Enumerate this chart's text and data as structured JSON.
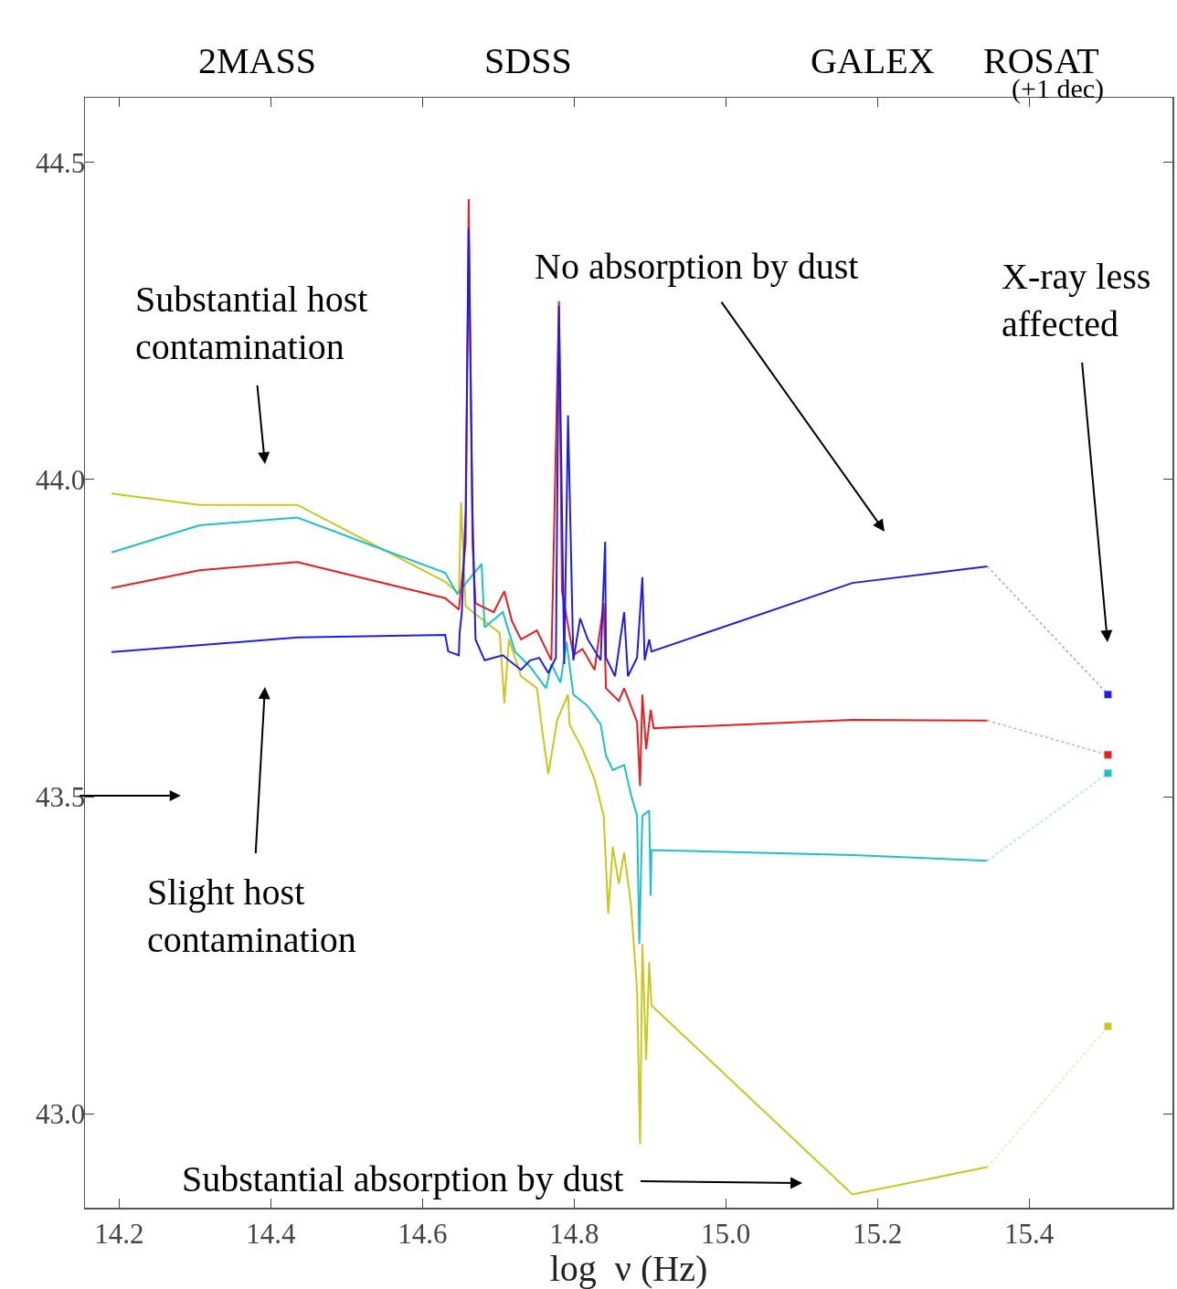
{
  "chart_data": {
    "type": "line",
    "xlabel": "log  ν (Hz)",
    "xlim": [
      14.155,
      15.589
    ],
    "ylim": [
      42.852,
      44.602
    ],
    "xticks": [
      {
        "value": 14.2,
        "label": "14.2"
      },
      {
        "value": 14.4,
        "label": "14.4"
      },
      {
        "value": 14.6,
        "label": "14.6"
      },
      {
        "value": 14.8,
        "label": "14.8"
      },
      {
        "value": 15.0,
        "label": "15.0"
      },
      {
        "value": 15.2,
        "label": "15.2"
      },
      {
        "value": 15.4,
        "label": "15.4"
      }
    ],
    "yticks": [
      {
        "value": 43.0,
        "label": "43.0"
      },
      {
        "value": 43.5,
        "label": "43.5"
      },
      {
        "value": 44.0,
        "label": "44.0"
      },
      {
        "value": 44.5,
        "label": "44.5"
      }
    ],
    "grid": false,
    "annotations": [
      "2MASS",
      "SDSS",
      "GALEX",
      "ROSAT",
      "(+1 dec)",
      "Substantial host\ncontamination",
      "Slight host\ncontamination",
      "No absorption by dust",
      "X-ray less\naffected",
      "Substantial absorption by dust"
    ],
    "series": [
      {
        "color": "#c8c81e",
        "x": [
          14.19,
          14.306,
          14.435,
          14.63,
          14.648,
          14.651,
          14.657,
          14.702,
          14.708,
          14.714,
          14.73,
          14.751,
          14.758,
          14.766,
          14.778,
          14.792,
          14.794,
          14.811,
          14.827,
          14.839,
          14.845,
          14.851,
          14.859,
          14.866,
          14.875,
          14.883,
          14.887,
          14.89,
          14.895,
          14.899,
          14.902,
          15.167,
          15.345
        ],
        "values": [
          43.978,
          43.96,
          43.96,
          43.839,
          43.82,
          43.964,
          43.8,
          43.758,
          43.647,
          43.748,
          43.69,
          43.671,
          43.604,
          43.536,
          43.622,
          43.661,
          43.614,
          43.575,
          43.527,
          43.47,
          43.316,
          43.421,
          43.363,
          43.412,
          43.33,
          43.196,
          42.952,
          43.268,
          43.085,
          43.239,
          43.171,
          42.873,
          42.916
        ]
      },
      {
        "color": "#1ec0c8",
        "x": [
          14.19,
          14.306,
          14.435,
          14.63,
          14.646,
          14.678,
          14.682,
          14.706,
          14.722,
          14.742,
          14.763,
          14.77,
          14.782,
          14.79,
          14.799,
          14.818,
          14.835,
          14.842,
          14.851,
          14.866,
          14.875,
          14.883,
          14.886,
          14.89,
          14.899,
          14.901,
          14.902,
          15.167,
          15.345
        ],
        "values": [
          43.885,
          43.928,
          43.94,
          43.853,
          43.82,
          43.867,
          43.767,
          43.791,
          43.729,
          43.705,
          43.671,
          43.709,
          43.68,
          43.744,
          43.661,
          43.643,
          43.614,
          43.565,
          43.542,
          43.55,
          43.503,
          43.47,
          43.268,
          43.47,
          43.478,
          43.344,
          43.416,
          43.408,
          43.399
        ]
      },
      {
        "color": "#e61e1e",
        "x": [
          14.19,
          14.306,
          14.435,
          14.63,
          14.648,
          14.657,
          14.661,
          14.666,
          14.67,
          14.694,
          14.708,
          14.718,
          14.73,
          14.751,
          14.77,
          14.78,
          14.784,
          14.799,
          14.811,
          14.827,
          14.839,
          14.842,
          14.859,
          14.866,
          14.883,
          14.887,
          14.89,
          14.895,
          14.901,
          14.905,
          15.167,
          15.345
        ],
        "values": [
          43.829,
          43.857,
          43.87,
          43.813,
          43.795,
          43.9,
          44.442,
          43.9,
          43.805,
          43.791,
          43.824,
          43.777,
          43.748,
          43.762,
          43.715,
          44.281,
          43.824,
          43.723,
          43.733,
          43.7,
          43.805,
          43.671,
          43.651,
          43.671,
          43.618,
          43.517,
          43.661,
          43.575,
          43.637,
          43.608,
          43.621,
          43.62
        ]
      },
      {
        "color": "#1e1ee6",
        "x": [
          14.19,
          14.306,
          14.435,
          14.63,
          14.634,
          14.648,
          14.649,
          14.652,
          14.657,
          14.661,
          14.666,
          14.67,
          14.682,
          14.694,
          14.706,
          14.714,
          14.73,
          14.742,
          14.754,
          14.766,
          14.776,
          14.78,
          14.787,
          14.792,
          14.799,
          14.808,
          14.818,
          14.835,
          14.841,
          14.842,
          14.854,
          14.866,
          14.871,
          14.883,
          14.89,
          14.893,
          14.899,
          14.902,
          15.167,
          15.345
        ],
        "values": [
          43.728,
          43.739,
          43.751,
          43.755,
          43.729,
          43.723,
          43.758,
          43.791,
          43.95,
          44.396,
          43.95,
          43.748,
          43.715,
          43.719,
          43.723,
          43.715,
          43.7,
          43.715,
          43.719,
          43.695,
          43.719,
          44.274,
          43.709,
          44.101,
          43.715,
          43.781,
          43.748,
          43.715,
          43.902,
          43.719,
          43.69,
          43.791,
          43.69,
          43.719,
          43.846,
          43.715,
          43.748,
          43.729,
          43.837,
          43.863
        ]
      },
      {
        "line_style": "dotted",
        "color": "#e6e6a0",
        "x": [
          15.345,
          15.504
        ],
        "values": [
          42.916,
          43.138
        ]
      },
      {
        "line_style": "dotted",
        "color": "#a0e6e6",
        "x": [
          15.345,
          15.504
        ],
        "values": [
          43.399,
          43.537
        ]
      },
      {
        "line_style": "dotted",
        "color": "#f0a0a0",
        "x": [
          15.345,
          15.504
        ],
        "values": [
          43.62,
          43.566
        ]
      },
      {
        "line_style": "dotted",
        "color": "#a0a0f0",
        "x": [
          15.345,
          15.504
        ],
        "values": [
          43.863,
          43.661
        ]
      },
      {
        "type": "scatter",
        "marker": "square",
        "color": "#c8c81e",
        "x": [
          15.504
        ],
        "values": [
          43.138
        ]
      },
      {
        "type": "scatter",
        "marker": "square",
        "color": "#1ec0c8",
        "x": [
          15.504
        ],
        "values": [
          43.537
        ]
      },
      {
        "type": "scatter",
        "marker": "square",
        "color": "#e61e1e",
        "x": [
          15.504
        ],
        "values": [
          43.566
        ]
      },
      {
        "type": "scatter",
        "marker": "square",
        "color": "#1e1ee6",
        "x": [
          15.504
        ],
        "values": [
          43.661
        ]
      }
    ]
  }
}
